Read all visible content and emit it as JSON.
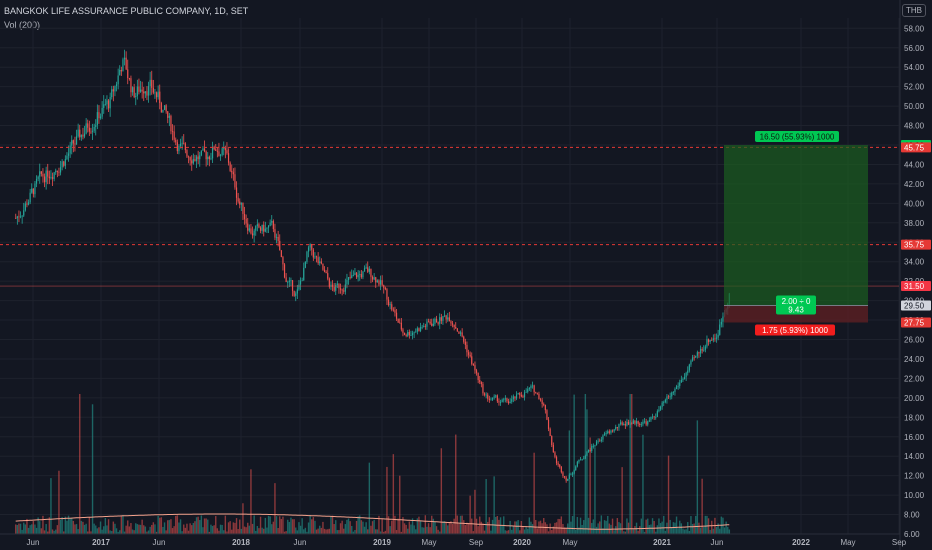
{
  "header": {
    "title": "BANGKOK LIFE ASSURANCE PUBLIC COMPANY, 1D, SET",
    "volume_label": "Vol (200)",
    "currency": "THB"
  },
  "colors": {
    "background": "#131722",
    "grid": "#1e222d",
    "up": "#26a69a",
    "down": "#ef5350",
    "target_zone": "#1b5e20",
    "stop_zone": "#5d1f23",
    "target_label": "#00c853",
    "stop_label": "#f21d1d",
    "level_line": "#e53935",
    "volume_ma": "#f4a28c"
  },
  "chart_data": {
    "type": "candlestick",
    "x_ticks": [
      "Jun",
      "2017",
      "Jun",
      "2018",
      "Jun",
      "2019",
      "May",
      "Sep",
      "2020",
      "May",
      "2021",
      "Jun",
      "2022",
      "May",
      "Sep"
    ],
    "y_ticks": [
      6.0,
      8.0,
      10.0,
      12.0,
      14.0,
      16.0,
      18.0,
      20.0,
      22.0,
      24.0,
      26.0,
      28.0,
      30.0,
      32.0,
      34.0,
      36.0,
      38.0,
      40.0,
      42.0,
      44.0,
      46.0,
      48.0,
      50.0,
      52.0,
      54.0,
      56.0,
      58.0
    ],
    "ylim": [
      6,
      60
    ],
    "price_path": [
      {
        "date": "2016-05",
        "price": 38.5
      },
      {
        "date": "2016-07",
        "price": 42.5
      },
      {
        "date": "2016-09",
        "price": 44.5
      },
      {
        "date": "2016-11",
        "price": 48.0
      },
      {
        "date": "2017-01",
        "price": 50.5
      },
      {
        "date": "2017-02",
        "price": 55.0
      },
      {
        "date": "2017-03",
        "price": 51.0
      },
      {
        "date": "2017-04",
        "price": 52.5
      },
      {
        "date": "2017-05",
        "price": 51.0
      },
      {
        "date": "2017-07",
        "price": 45.5
      },
      {
        "date": "2017-09",
        "price": 44.5
      },
      {
        "date": "2017-10",
        "price": 46.0
      },
      {
        "date": "2017-11",
        "price": 44.5
      },
      {
        "date": "2017-12",
        "price": 40.0
      },
      {
        "date": "2018-01",
        "price": 37.0
      },
      {
        "date": "2018-03",
        "price": 37.5
      },
      {
        "date": "2018-04",
        "price": 32.0
      },
      {
        "date": "2018-05",
        "price": 30.5
      },
      {
        "date": "2018-06",
        "price": 35.5
      },
      {
        "date": "2018-08",
        "price": 31.0
      },
      {
        "date": "2018-10",
        "price": 32.5
      },
      {
        "date": "2018-11",
        "price": 33.0
      },
      {
        "date": "2018-12",
        "price": 32.0
      },
      {
        "date": "2019-02",
        "price": 26.5
      },
      {
        "date": "2019-05",
        "price": 28.0
      },
      {
        "date": "2019-06",
        "price": 28.5
      },
      {
        "date": "2019-07",
        "price": 26.5
      },
      {
        "date": "2019-09",
        "price": 20.0
      },
      {
        "date": "2019-11",
        "price": 19.5
      },
      {
        "date": "2020-01",
        "price": 21.0
      },
      {
        "date": "2020-02",
        "price": 19.5
      },
      {
        "date": "2020-03",
        "price": 13.5
      },
      {
        "date": "2020-04",
        "price": 11.5
      },
      {
        "date": "2020-05",
        "price": 13.5
      },
      {
        "date": "2020-07",
        "price": 16.0
      },
      {
        "date": "2020-09",
        "price": 17.5
      },
      {
        "date": "2020-11",
        "price": 17.5
      },
      {
        "date": "2021-01",
        "price": 20.5
      },
      {
        "date": "2021-03",
        "price": 24.0
      },
      {
        "date": "2021-04",
        "price": 26.0
      },
      {
        "date": "2021-05",
        "price": 26.5
      },
      {
        "date": "2021-05",
        "price": 27.0
      },
      {
        "date": "2021-06",
        "price": 31.5
      }
    ],
    "volume_peaks": [
      0.1,
      0.08,
      0.05,
      0.12,
      0.09,
      0.06,
      0.08,
      0.04,
      0.25,
      0.05,
      0.03,
      0.08,
      0.06,
      0.15,
      0.07,
      0.05,
      0.09,
      0.06,
      0.04,
      0.1,
      0.08,
      0.05,
      0.06,
      0.07,
      0.09,
      0.08,
      0.14,
      0.11,
      0.09,
      0.12,
      0.19,
      0.1,
      0.08,
      0.15
    ],
    "last_price": "31.50",
    "price_axis_labels": [
      {
        "value": 46.0,
        "text": "46.00",
        "style": "target"
      },
      {
        "value": 45.75,
        "text": "45.75",
        "style": "level"
      },
      {
        "value": 35.75,
        "text": "35.75",
        "style": "level"
      },
      {
        "value": 31.5,
        "text": "31.50",
        "style": "last"
      },
      {
        "value": 29.5,
        "text": "29.50",
        "style": "entry"
      },
      {
        "value": 27.75,
        "text": "27.75",
        "style": "level"
      }
    ],
    "horizontal_levels": [
      45.75,
      35.75
    ],
    "position": {
      "entry": 29.5,
      "target": 46.0,
      "stop": 27.75,
      "target_label": "16.50 (55.93%) 1000",
      "stop_label": "1.75 (5.93%) 1000",
      "ratio_label_line1": "2.00 ÷ 0",
      "ratio_label_line2": "9.43"
    }
  }
}
